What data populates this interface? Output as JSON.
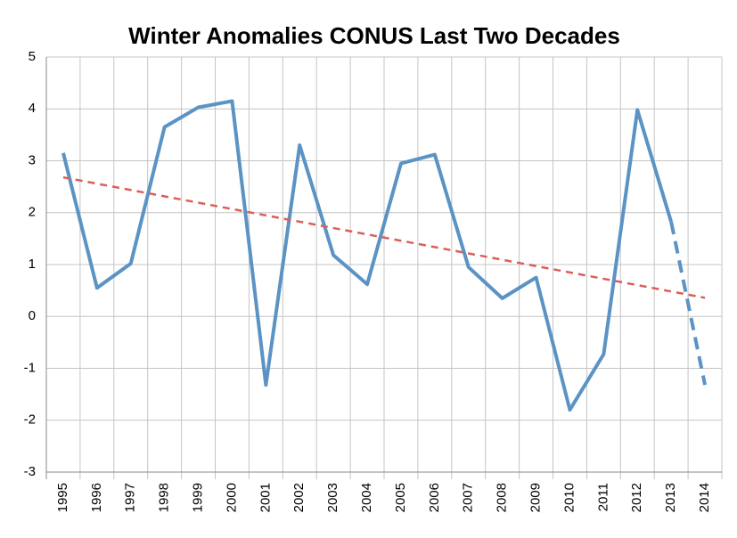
{
  "chart_data": {
    "type": "line",
    "title": "Winter Anomalies CONUS Last Two Decades",
    "categories": [
      "1995",
      "1996",
      "1997",
      "1998",
      "1999",
      "2000",
      "2001",
      "2002",
      "2003",
      "2004",
      "2005",
      "2006",
      "2007",
      "2008",
      "2009",
      "2010",
      "2011",
      "2012",
      "2013",
      "2014"
    ],
    "series": [
      {
        "color": "#5b93c4",
        "values": [
          3.15,
          0.55,
          1.02,
          3.65,
          4.03,
          4.15,
          -1.32,
          3.3,
          1.18,
          0.62,
          2.95,
          3.12,
          0.95,
          0.35,
          0.75,
          -1.8,
          -0.73,
          3.98,
          1.82,
          -1.32
        ],
        "dashed_from": "2013"
      }
    ],
    "trendline": {
      "type": "linear",
      "color": "#d9605a",
      "dashed": true
    },
    "ylim": [
      -3,
      5
    ],
    "yticks": [
      -3,
      -2,
      -1,
      0,
      1,
      2,
      3,
      4,
      5
    ],
    "grid": true
  }
}
